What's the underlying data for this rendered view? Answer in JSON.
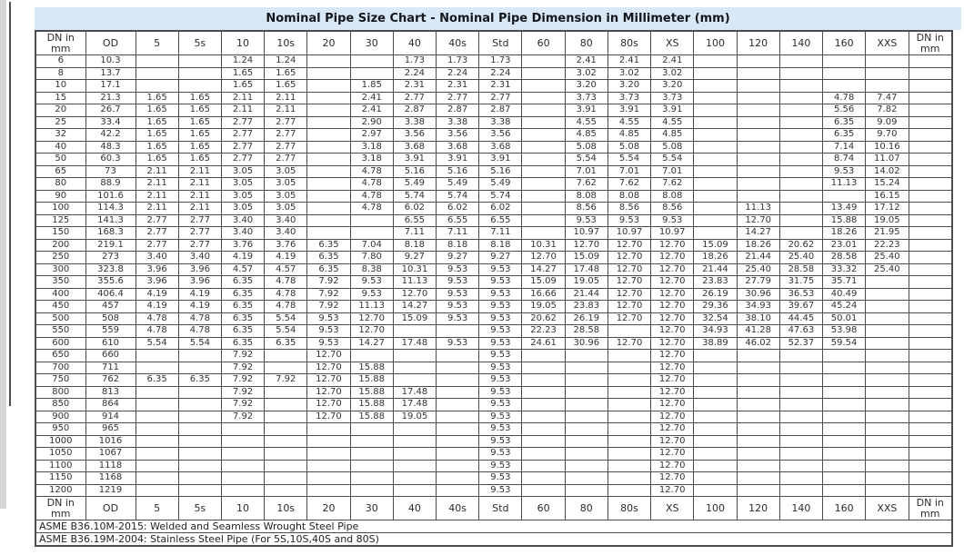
{
  "title": "Nominal Pipe Size Chart - Nominal Pipe Dimension in Millimeter (mm)",
  "columns": [
    "DN in mm",
    "OD",
    "5",
    "5s",
    "10",
    "10s",
    "20",
    "30",
    "40",
    "40s",
    "Std",
    "60",
    "80",
    "80s",
    "XS",
    "100",
    "120",
    "140",
    "160",
    "XXS",
    "DN in mm"
  ],
  "rows": [
    [
      "6",
      "10.3",
      "",
      "",
      "1.24",
      "1.24",
      "",
      "",
      "1.73",
      "1.73",
      "1.73",
      "",
      "2.41",
      "2.41",
      "2.41",
      "",
      "",
      "",
      "",
      "",
      ""
    ],
    [
      "8",
      "13.7",
      "",
      "",
      "1.65",
      "1.65",
      "",
      "",
      "2.24",
      "2.24",
      "2.24",
      "",
      "3.02",
      "3.02",
      "3.02",
      "",
      "",
      "",
      "",
      "",
      ""
    ],
    [
      "10",
      "17.1",
      "",
      "",
      "1.65",
      "1.65",
      "",
      "1.85",
      "2.31",
      "2.31",
      "2.31",
      "",
      "3.20",
      "3.20",
      "3.20",
      "",
      "",
      "",
      "",
      "",
      ""
    ],
    [
      "15",
      "21.3",
      "1.65",
      "1.65",
      "2.11",
      "2.11",
      "",
      "2.41",
      "2.77",
      "2.77",
      "2.77",
      "",
      "3.73",
      "3.73",
      "3.73",
      "",
      "",
      "",
      "4.78",
      "7.47",
      ""
    ],
    [
      "20",
      "26.7",
      "1.65",
      "1.65",
      "2.11",
      "2.11",
      "",
      "2.41",
      "2.87",
      "2.87",
      "2.87",
      "",
      "3.91",
      "3.91",
      "3.91",
      "",
      "",
      "",
      "5.56",
      "7.82",
      ""
    ],
    [
      "25",
      "33.4",
      "1.65",
      "1.65",
      "2.77",
      "2.77",
      "",
      "2.90",
      "3.38",
      "3.38",
      "3.38",
      "",
      "4.55",
      "4.55",
      "4.55",
      "",
      "",
      "",
      "6.35",
      "9.09",
      ""
    ],
    [
      "32",
      "42.2",
      "1.65",
      "1.65",
      "2.77",
      "2.77",
      "",
      "2.97",
      "3.56",
      "3.56",
      "3.56",
      "",
      "4.85",
      "4.85",
      "4.85",
      "",
      "",
      "",
      "6.35",
      "9.70",
      ""
    ],
    [
      "40",
      "48.3",
      "1.65",
      "1.65",
      "2.77",
      "2.77",
      "",
      "3.18",
      "3.68",
      "3.68",
      "3.68",
      "",
      "5.08",
      "5.08",
      "5.08",
      "",
      "",
      "",
      "7.14",
      "10.16",
      ""
    ],
    [
      "50",
      "60.3",
      "1.65",
      "1.65",
      "2.77",
      "2.77",
      "",
      "3.18",
      "3.91",
      "3.91",
      "3.91",
      "",
      "5.54",
      "5.54",
      "5.54",
      "",
      "",
      "",
      "8.74",
      "11.07",
      ""
    ],
    [
      "65",
      "73",
      "2.11",
      "2.11",
      "3.05",
      "3.05",
      "",
      "4.78",
      "5.16",
      "5.16",
      "5.16",
      "",
      "7.01",
      "7.01",
      "7.01",
      "",
      "",
      "",
      "9.53",
      "14.02",
      ""
    ],
    [
      "80",
      "88.9",
      "2.11",
      "2.11",
      "3.05",
      "3.05",
      "",
      "4.78",
      "5.49",
      "5.49",
      "5.49",
      "",
      "7.62",
      "7.62",
      "7.62",
      "",
      "",
      "",
      "11.13",
      "15.24",
      ""
    ],
    [
      "90",
      "101.6",
      "2.11",
      "2.11",
      "3.05",
      "3.05",
      "",
      "4.78",
      "5.74",
      "5.74",
      "5.74",
      "",
      "8.08",
      "8.08",
      "8.08",
      "",
      "",
      "",
      "",
      "16.15",
      ""
    ],
    [
      "100",
      "114.3",
      "2.11",
      "2.11",
      "3.05",
      "3.05",
      "",
      "4.78",
      "6.02",
      "6.02",
      "6.02",
      "",
      "8.56",
      "8.56",
      "8.56",
      "",
      "11.13",
      "",
      "13.49",
      "17.12",
      ""
    ],
    [
      "125",
      "141.3",
      "2.77",
      "2.77",
      "3.40",
      "3.40",
      "",
      "",
      "6.55",
      "6.55",
      "6.55",
      "",
      "9.53",
      "9.53",
      "9.53",
      "",
      "12.70",
      "",
      "15.88",
      "19.05",
      ""
    ],
    [
      "150",
      "168.3",
      "2.77",
      "2.77",
      "3.40",
      "3.40",
      "",
      "",
      "7.11",
      "7.11",
      "7.11",
      "",
      "10.97",
      "10.97",
      "10.97",
      "",
      "14.27",
      "",
      "18.26",
      "21.95",
      ""
    ],
    [
      "200",
      "219.1",
      "2.77",
      "2.77",
      "3.76",
      "3.76",
      "6.35",
      "7.04",
      "8.18",
      "8.18",
      "8.18",
      "10.31",
      "12.70",
      "12.70",
      "12.70",
      "15.09",
      "18.26",
      "20.62",
      "23.01",
      "22.23",
      ""
    ],
    [
      "250",
      "273",
      "3.40",
      "3.40",
      "4.19",
      "4.19",
      "6.35",
      "7.80",
      "9.27",
      "9.27",
      "9.27",
      "12.70",
      "15.09",
      "12.70",
      "12.70",
      "18.26",
      "21.44",
      "25.40",
      "28.58",
      "25.40",
      ""
    ],
    [
      "300",
      "323.8",
      "3.96",
      "3.96",
      "4.57",
      "4.57",
      "6.35",
      "8.38",
      "10.31",
      "9.53",
      "9.53",
      "14.27",
      "17.48",
      "12.70",
      "12.70",
      "21.44",
      "25.40",
      "28.58",
      "33.32",
      "25.40",
      ""
    ],
    [
      "350",
      "355.6",
      "3.96",
      "3.96",
      "6.35",
      "4.78",
      "7.92",
      "9.53",
      "11.13",
      "9.53",
      "9.53",
      "15.09",
      "19.05",
      "12.70",
      "12.70",
      "23.83",
      "27.79",
      "31.75",
      "35.71",
      "",
      ""
    ],
    [
      "400",
      "406.4",
      "4.19",
      "4.19",
      "6.35",
      "4.78",
      "7.92",
      "9.53",
      "12.70",
      "9.53",
      "9.53",
      "16.66",
      "21.44",
      "12.70",
      "12.70",
      "26.19",
      "30.96",
      "36.53",
      "40.49",
      "",
      ""
    ],
    [
      "450",
      "457",
      "4.19",
      "4.19",
      "6.35",
      "4.78",
      "7.92",
      "11.13",
      "14.27",
      "9.53",
      "9.53",
      "19.05",
      "23.83",
      "12.70",
      "12.70",
      "29.36",
      "34.93",
      "39.67",
      "45.24",
      "",
      ""
    ],
    [
      "500",
      "508",
      "4.78",
      "4.78",
      "6.35",
      "5.54",
      "9.53",
      "12.70",
      "15.09",
      "9.53",
      "9.53",
      "20.62",
      "26.19",
      "12.70",
      "12.70",
      "32.54",
      "38.10",
      "44.45",
      "50.01",
      "",
      ""
    ],
    [
      "550",
      "559",
      "4.78",
      "4.78",
      "6.35",
      "5.54",
      "9.53",
      "12.70",
      "",
      "",
      "9.53",
      "22.23",
      "28.58",
      "",
      "12.70",
      "34.93",
      "41.28",
      "47.63",
      "53.98",
      "",
      ""
    ],
    [
      "600",
      "610",
      "5.54",
      "5.54",
      "6.35",
      "6.35",
      "9.53",
      "14.27",
      "17.48",
      "9.53",
      "9.53",
      "24.61",
      "30.96",
      "12.70",
      "12.70",
      "38.89",
      "46.02",
      "52.37",
      "59.54",
      "",
      ""
    ],
    [
      "650",
      "660",
      "",
      "",
      "7.92",
      "",
      "12.70",
      "",
      "",
      "",
      "9.53",
      "",
      "",
      "",
      "12.70",
      "",
      "",
      "",
      "",
      "",
      ""
    ],
    [
      "700",
      "711",
      "",
      "",
      "7.92",
      "",
      "12.70",
      "15.88",
      "",
      "",
      "9.53",
      "",
      "",
      "",
      "12.70",
      "",
      "",
      "",
      "",
      "",
      ""
    ],
    [
      "750",
      "762",
      "6.35",
      "6.35",
      "7.92",
      "7.92",
      "12.70",
      "15.88",
      "",
      "",
      "9.53",
      "",
      "",
      "",
      "12.70",
      "",
      "",
      "",
      "",
      "",
      ""
    ],
    [
      "800",
      "813",
      "",
      "",
      "7.92",
      "",
      "12.70",
      "15.88",
      "17.48",
      "",
      "9.53",
      "",
      "",
      "",
      "12.70",
      "",
      "",
      "",
      "",
      "",
      ""
    ],
    [
      "850",
      "864",
      "",
      "",
      "7.92",
      "",
      "12.70",
      "15.88",
      "17.48",
      "",
      "9.53",
      "",
      "",
      "",
      "12.70",
      "",
      "",
      "",
      "",
      "",
      ""
    ],
    [
      "900",
      "914",
      "",
      "",
      "7.92",
      "",
      "12.70",
      "15.88",
      "19.05",
      "",
      "9.53",
      "",
      "",
      "",
      "12.70",
      "",
      "",
      "",
      "",
      "",
      ""
    ],
    [
      "950",
      "965",
      "",
      "",
      "",
      "",
      "",
      "",
      "",
      "",
      "9.53",
      "",
      "",
      "",
      "12.70",
      "",
      "",
      "",
      "",
      "",
      ""
    ],
    [
      "1000",
      "1016",
      "",
      "",
      "",
      "",
      "",
      "",
      "",
      "",
      "9.53",
      "",
      "",
      "",
      "12.70",
      "",
      "",
      "",
      "",
      "",
      ""
    ],
    [
      "1050",
      "1067",
      "",
      "",
      "",
      "",
      "",
      "",
      "",
      "",
      "9.53",
      "",
      "",
      "",
      "12.70",
      "",
      "",
      "",
      "",
      "",
      ""
    ],
    [
      "1100",
      "1118",
      "",
      "",
      "",
      "",
      "",
      "",
      "",
      "",
      "9.53",
      "",
      "",
      "",
      "12.70",
      "",
      "",
      "",
      "",
      "",
      ""
    ],
    [
      "1150",
      "1168",
      "",
      "",
      "",
      "",
      "",
      "",
      "",
      "",
      "9.53",
      "",
      "",
      "",
      "12.70",
      "",
      "",
      "",
      "",
      "",
      ""
    ],
    [
      "1200",
      "1219",
      "",
      "",
      "",
      "",
      "",
      "",
      "",
      "",
      "9.53",
      "",
      "",
      "",
      "12.70",
      "",
      "",
      "",
      "",
      "",
      ""
    ]
  ],
  "footer_notes": [
    "ASME B36.10M-2015: Welded and Seamless Wrought Steel Pipe",
    "ASME B36.19M-2004: Stainless Steel Pipe (For 5S,10S,40S and 80S)"
  ],
  "colors": {
    "title_bg": "#d9e8f6",
    "border": "#4d4d4d",
    "text": "#333333"
  }
}
